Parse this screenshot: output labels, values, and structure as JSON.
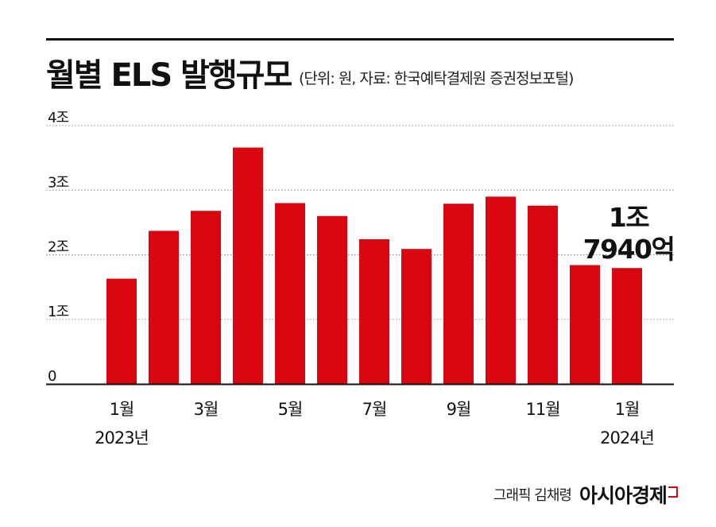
{
  "header": {
    "title": "월별 ELS 발행규모",
    "subtitle": "(단위: 원, 자료: 한국예탁결제원 증권정보포털)"
  },
  "callout": {
    "line1": "1조",
    "line2": "7940억"
  },
  "credit": {
    "person": "그래픽 김채령",
    "logo": "아시아경제",
    "logo_color": "#d7060f"
  },
  "colors": {
    "bar": "#d7060f",
    "grid": "#888888",
    "axis": "#111111",
    "text": "#111111"
  },
  "chart_data": {
    "type": "bar",
    "categories": [
      "2023-01",
      "2023-02",
      "2023-03",
      "2023-04",
      "2023-05",
      "2023-06",
      "2023-07",
      "2023-08",
      "2023-09",
      "2023-10",
      "2023-11",
      "2023-12",
      "2024-01"
    ],
    "values": [
      1.63,
      2.37,
      2.68,
      3.66,
      2.8,
      2.6,
      2.24,
      2.09,
      2.79,
      2.9,
      2.76,
      1.84,
      1.794
    ],
    "ylim": [
      0,
      4
    ],
    "yticks": [
      {
        "value": 0,
        "label": "0"
      },
      {
        "value": 1,
        "label": "1조"
      },
      {
        "value": 2,
        "label": "2조"
      },
      {
        "value": 3,
        "label": "3조"
      },
      {
        "value": 4,
        "label": "4조"
      }
    ],
    "xtick_labels": [
      {
        "index": 0,
        "line1": "1월",
        "line2": "2023년"
      },
      {
        "index": 2,
        "line1": "3월",
        "line2": ""
      },
      {
        "index": 4,
        "line1": "5월",
        "line2": ""
      },
      {
        "index": 6,
        "line1": "7월",
        "line2": ""
      },
      {
        "index": 8,
        "line1": "9월",
        "line2": ""
      },
      {
        "index": 10,
        "line1": "11월",
        "line2": ""
      },
      {
        "index": 12,
        "line1": "1월",
        "line2": "2024년"
      }
    ],
    "grid": true,
    "grid_style": "dotted",
    "title": "월별 ELS 발행규모",
    "xlabel": "",
    "ylabel": ""
  }
}
